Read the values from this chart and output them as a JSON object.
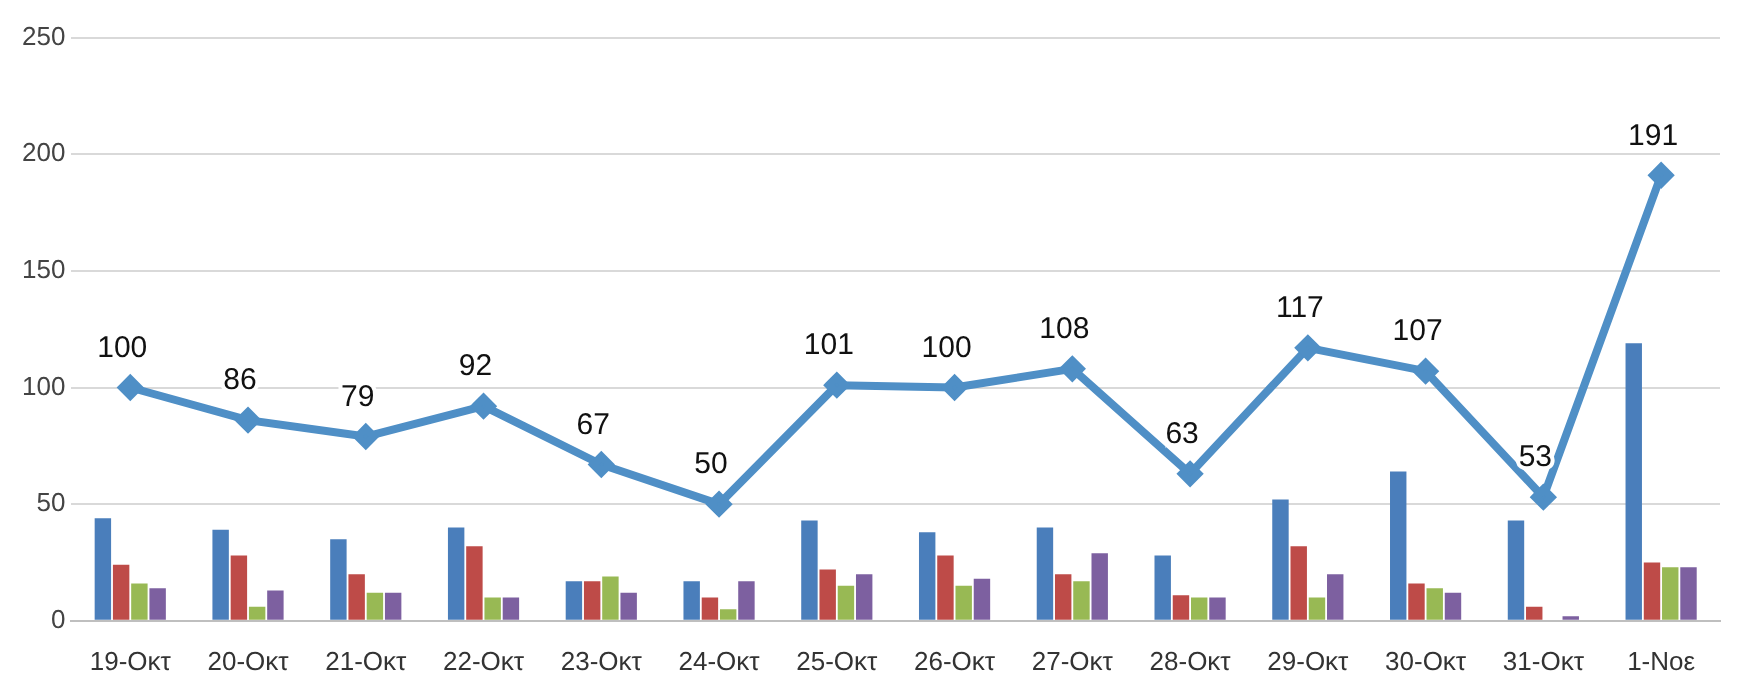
{
  "chart_data": {
    "type": "bar",
    "categories": [
      "19-Οκτ",
      "20-Οκτ",
      "21-Οκτ",
      "22-Οκτ",
      "23-Οκτ",
      "24-Οκτ",
      "25-Οκτ",
      "26-Οκτ",
      "27-Οκτ",
      "28-Οκτ",
      "29-Οκτ",
      "30-Οκτ",
      "31-Οκτ",
      "1-Νοε"
    ],
    "series": [
      {
        "color": "#4a7ebb",
        "values": [
          44,
          39,
          35,
          40,
          17,
          17,
          43,
          38,
          40,
          28,
          52,
          64,
          43,
          119
        ]
      },
      {
        "color": "#be4b48",
        "values": [
          24,
          28,
          20,
          32,
          17,
          10,
          22,
          28,
          20,
          11,
          32,
          16,
          6,
          25
        ]
      },
      {
        "color": "#98b954",
        "values": [
          16,
          6,
          12,
          10,
          19,
          5,
          15,
          15,
          17,
          10,
          10,
          14,
          0,
          23
        ]
      },
      {
        "color": "#7d60a0",
        "values": [
          14,
          13,
          12,
          10,
          12,
          17,
          20,
          18,
          29,
          10,
          20,
          12,
          2,
          23
        ]
      },
      {
        "type": "line",
        "color": "#4f8fc6",
        "marker": "diamond",
        "data_labels": true,
        "values": [
          100,
          86,
          79,
          92,
          67,
          50,
          101,
          100,
          108,
          63,
          117,
          107,
          53,
          191
        ]
      }
    ],
    "ylim": [
      0,
      250
    ],
    "yticks": [
      0,
      50,
      100,
      150,
      200,
      250
    ],
    "grid": "y",
    "legend": false
  }
}
